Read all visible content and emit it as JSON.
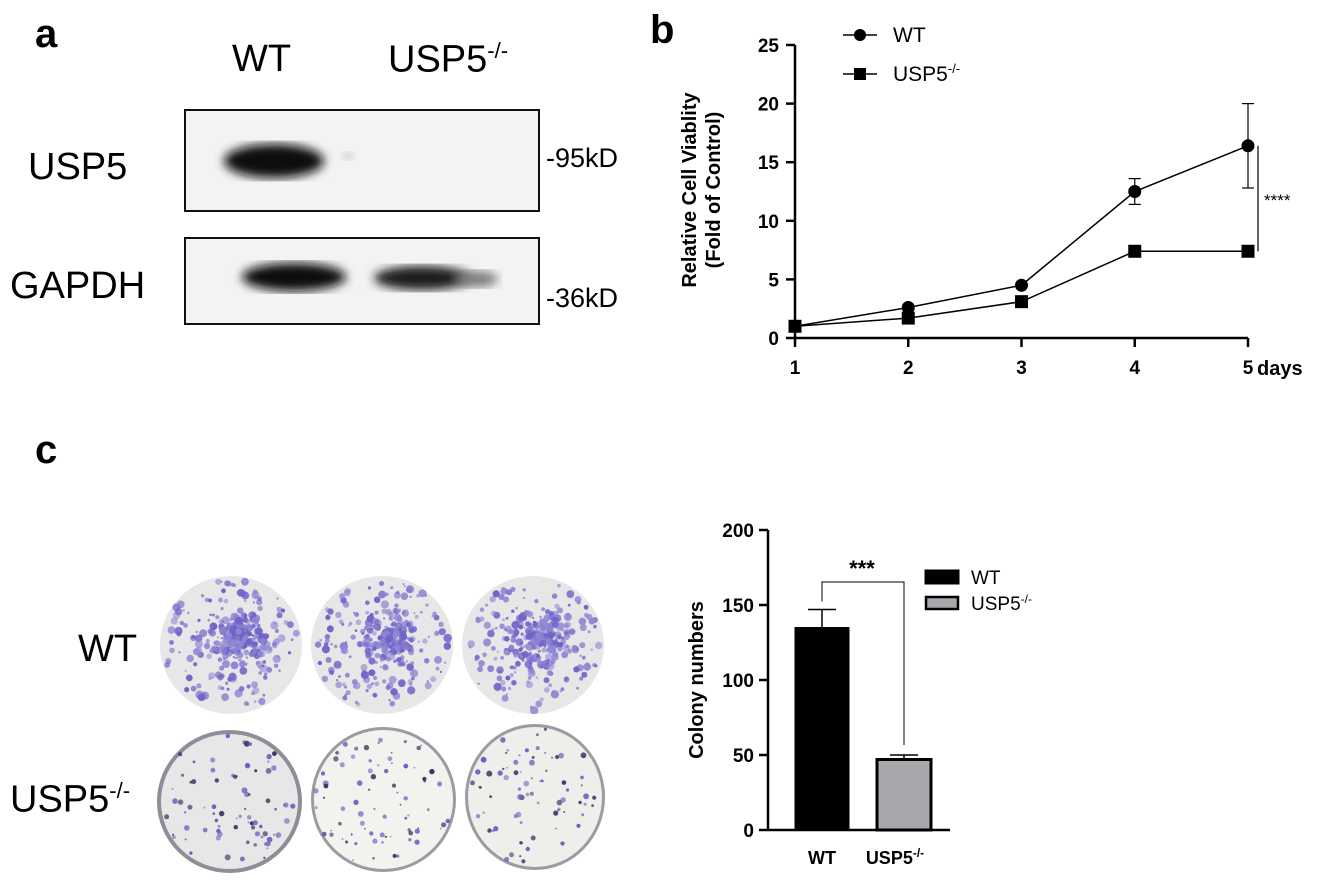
{
  "panel_a": {
    "letter": "a",
    "lane_wt": "WT",
    "lane_ko_base": "USP5",
    "lane_ko_sup": "-/-",
    "band_usp5": "USP5",
    "band_gapdh": "GAPDH",
    "marker_usp5": "-95kD",
    "marker_gapdh": "-36kD"
  },
  "panel_b": {
    "letter": "b",
    "ylabel_line1": "Relative Cell Viablity",
    "ylabel_line2": "(Fold of Control)",
    "xunit": "days",
    "significance": "****",
    "legend_wt": "WT",
    "legend_ko_base": "USP5",
    "legend_ko_sup": "-/-"
  },
  "panel_c": {
    "letter": "c",
    "row_wt": "WT",
    "row_ko_base": "USP5",
    "row_ko_sup": "-/-",
    "ylabel": "Colony numbers",
    "significance": "***",
    "xtick_wt": "WT",
    "xtick_ko_base": "USP5",
    "xtick_ko_sup": "-/-",
    "legend_wt": "WT",
    "legend_ko_base": "USP5",
    "legend_ko_sup": "-/-"
  },
  "chart_data": [
    {
      "type": "line",
      "panel": "b",
      "x": [
        1,
        2,
        3,
        4,
        5
      ],
      "xlabel": "days",
      "ylabel": "Relative Cell Viablity (Fold of Control)",
      "ylim": [
        0,
        25
      ],
      "yticks": [
        0,
        5,
        10,
        15,
        20,
        25
      ],
      "xticks": [
        1,
        2,
        3,
        4,
        5
      ],
      "legend_position": "top-left",
      "series": [
        {
          "name": "WT",
          "marker": "circle",
          "values": [
            1.0,
            2.6,
            4.5,
            12.5,
            16.4
          ],
          "error": [
            0,
            0.1,
            0.1,
            1.1,
            3.6
          ]
        },
        {
          "name": "USP5-/-",
          "marker": "square",
          "values": [
            1.0,
            1.7,
            3.1,
            7.4,
            7.4
          ],
          "error": [
            0,
            0.1,
            0.1,
            0.1,
            0.1
          ]
        }
      ],
      "annotation": "****"
    },
    {
      "type": "bar",
      "panel": "c",
      "categories": [
        "WT",
        "USP5-/-"
      ],
      "values": [
        135,
        47
      ],
      "error": [
        12,
        3
      ],
      "ylabel": "Colony numbers",
      "ylim": [
        0,
        200
      ],
      "yticks": [
        0,
        50,
        100,
        150,
        200
      ],
      "colors": [
        "#000000",
        "#a8a8ac"
      ],
      "legend_position": "top-right",
      "annotation": "***"
    }
  ]
}
